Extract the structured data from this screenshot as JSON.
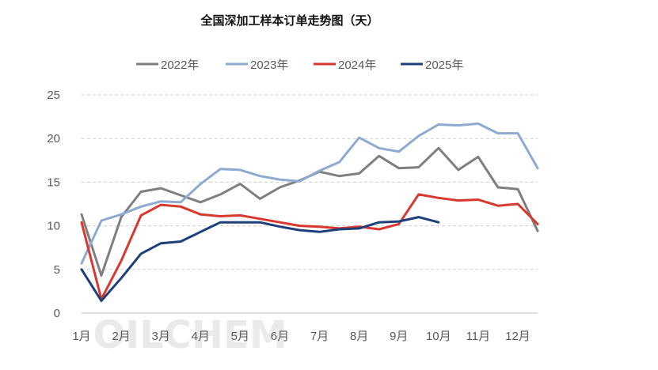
{
  "chart_data": {
    "type": "line",
    "title": "全国深加工样本订单走势图（天）",
    "xlabel": "",
    "ylabel": "",
    "ylim": [
      0,
      25
    ],
    "yticks": [
      0,
      5,
      10,
      15,
      20,
      25
    ],
    "grid": true,
    "legend_position": "top",
    "x_tick_labels": [
      "1月",
      "2月",
      "3月",
      "4月",
      "5月",
      "6月",
      "7月",
      "8月",
      "9月",
      "10月",
      "11月",
      "12月"
    ],
    "x_points_per_month": 2,
    "series": [
      {
        "name": "2022年",
        "color": "#7f7f7f",
        "values": [
          11.3,
          4.3,
          11.0,
          13.9,
          14.3,
          13.5,
          12.7,
          13.6,
          14.8,
          13.1,
          14.4,
          15.2,
          16.2,
          15.7,
          16.0,
          18.0,
          16.6,
          16.7,
          18.9,
          16.4,
          17.9,
          14.4,
          14.2,
          9.4
        ]
      },
      {
        "name": "2023年",
        "color": "#8eaad0",
        "values": [
          5.7,
          10.6,
          11.3,
          12.2,
          12.8,
          12.7,
          14.8,
          16.5,
          16.4,
          15.7,
          15.3,
          15.1,
          16.3,
          17.3,
          20.1,
          18.9,
          18.5,
          20.3,
          21.6,
          21.5,
          21.7,
          20.6,
          20.6,
          16.6
        ]
      },
      {
        "name": "2024年",
        "color": "#d9382e",
        "values": [
          10.4,
          1.6,
          6.0,
          11.2,
          12.4,
          12.2,
          11.3,
          11.1,
          11.2,
          10.8,
          10.4,
          10.0,
          9.9,
          9.7,
          9.9,
          9.6,
          10.2,
          13.6,
          13.2,
          12.9,
          13.0,
          12.3,
          12.5,
          10.2
        ]
      },
      {
        "name": "2025年",
        "color": "#1f3f7a",
        "values": [
          5.0,
          1.4,
          4.0,
          6.8,
          8.0,
          8.2,
          9.3,
          10.4,
          10.4,
          10.4,
          9.9,
          9.5,
          9.3,
          9.6,
          9.7,
          10.4,
          10.5,
          11.0,
          10.4
        ]
      }
    ]
  },
  "watermark": "OILCHEM"
}
